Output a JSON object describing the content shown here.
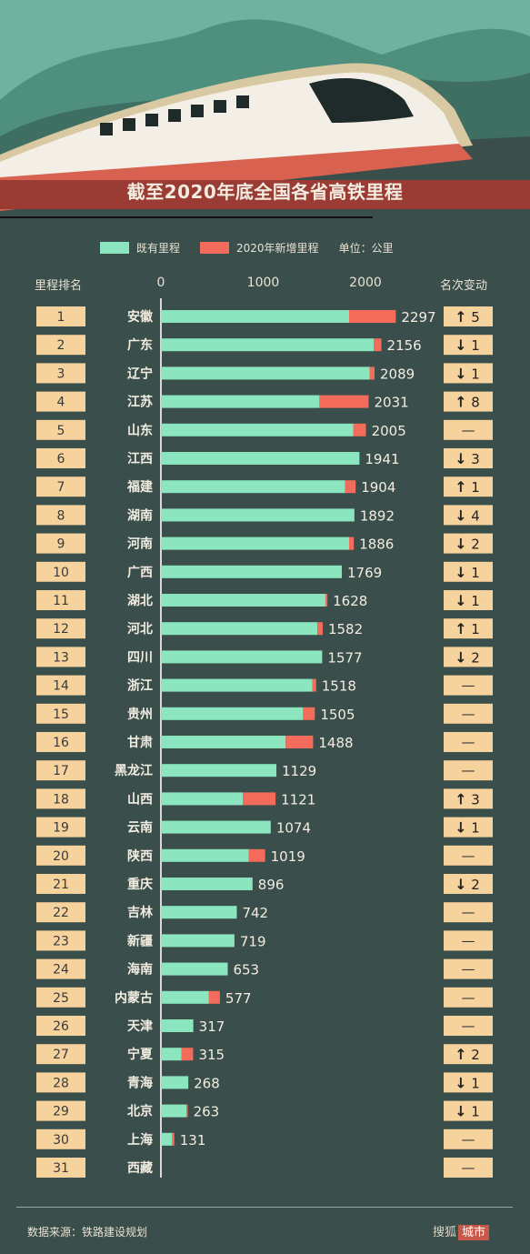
{
  "title": "截至2020年底全国各省高铁里程",
  "legend": {
    "existing": "既有里程",
    "added": "2020年新增里程",
    "unit": "单位：公里"
  },
  "headers": {
    "rank": "里程排名",
    "change": "名次变动"
  },
  "colors": {
    "existing": "#8be6bf",
    "added": "#f26b5b",
    "badge": "#f6d39c",
    "bg": "#3a4f4b"
  },
  "source": "数据来源：铁路建设规划",
  "brand": {
    "name": "搜狐",
    "tag": "城市"
  },
  "chart_data": {
    "type": "bar",
    "orientation": "horizontal",
    "stacked": true,
    "xlim": [
      0,
      2400
    ],
    "xticks": [
      0,
      1000,
      2000
    ],
    "series": [
      {
        "name": "既有里程",
        "values": [
          1840,
          2080,
          2040,
          1550,
          1880,
          1941,
          1800,
          1892,
          1840,
          1769,
          1610,
          1530,
          1577,
          1480,
          1390,
          1220,
          1129,
          800,
          1074,
          860,
          896,
          742,
          719,
          653,
          470,
          317,
          200,
          268,
          250,
          110,
          0
        ]
      },
      {
        "name": "2020年新增里程",
        "values": [
          457,
          76,
          49,
          481,
          125,
          0,
          104,
          0,
          46,
          0,
          18,
          52,
          0,
          38,
          115,
          268,
          0,
          321,
          0,
          159,
          0,
          0,
          0,
          0,
          107,
          0,
          115,
          0,
          13,
          21,
          0
        ]
      }
    ],
    "rows": [
      {
        "rank": "1",
        "province": "安徽",
        "total": "2297",
        "dir": "up",
        "change": "5"
      },
      {
        "rank": "2",
        "province": "广东",
        "total": "2156",
        "dir": "down",
        "change": "1"
      },
      {
        "rank": "3",
        "province": "辽宁",
        "total": "2089",
        "dir": "down",
        "change": "1"
      },
      {
        "rank": "4",
        "province": "江苏",
        "total": "2031",
        "dir": "up",
        "change": "8"
      },
      {
        "rank": "5",
        "province": "山东",
        "total": "2005",
        "dir": "none",
        "change": "—"
      },
      {
        "rank": "6",
        "province": "江西",
        "total": "1941",
        "dir": "down",
        "change": "3"
      },
      {
        "rank": "7",
        "province": "福建",
        "total": "1904",
        "dir": "up",
        "change": "1"
      },
      {
        "rank": "8",
        "province": "湖南",
        "total": "1892",
        "dir": "down",
        "change": "4"
      },
      {
        "rank": "9",
        "province": "河南",
        "total": "1886",
        "dir": "down",
        "change": "2"
      },
      {
        "rank": "10",
        "province": "广西",
        "total": "1769",
        "dir": "down",
        "change": "1"
      },
      {
        "rank": "11",
        "province": "湖北",
        "total": "1628",
        "dir": "down",
        "change": "1"
      },
      {
        "rank": "12",
        "province": "河北",
        "total": "1582",
        "dir": "up",
        "change": "1"
      },
      {
        "rank": "13",
        "province": "四川",
        "total": "1577",
        "dir": "down",
        "change": "2"
      },
      {
        "rank": "14",
        "province": "浙江",
        "total": "1518",
        "dir": "none",
        "change": "—"
      },
      {
        "rank": "15",
        "province": "贵州",
        "total": "1505",
        "dir": "none",
        "change": "—"
      },
      {
        "rank": "16",
        "province": "甘肃",
        "total": "1488",
        "dir": "none",
        "change": "—"
      },
      {
        "rank": "17",
        "province": "黑龙江",
        "total": "1129",
        "dir": "none",
        "change": "—"
      },
      {
        "rank": "18",
        "province": "山西",
        "total": "1121",
        "dir": "up",
        "change": "3"
      },
      {
        "rank": "19",
        "province": "云南",
        "total": "1074",
        "dir": "down",
        "change": "1"
      },
      {
        "rank": "20",
        "province": "陕西",
        "total": "1019",
        "dir": "none",
        "change": "—"
      },
      {
        "rank": "21",
        "province": "重庆",
        "total": "896",
        "dir": "down",
        "change": "2"
      },
      {
        "rank": "22",
        "province": "吉林",
        "total": "742",
        "dir": "none",
        "change": "—"
      },
      {
        "rank": "23",
        "province": "新疆",
        "total": "719",
        "dir": "none",
        "change": "—"
      },
      {
        "rank": "24",
        "province": "海南",
        "total": "653",
        "dir": "none",
        "change": "—"
      },
      {
        "rank": "25",
        "province": "内蒙古",
        "total": "577",
        "dir": "none",
        "change": "—"
      },
      {
        "rank": "26",
        "province": "天津",
        "total": "317",
        "dir": "none",
        "change": "—"
      },
      {
        "rank": "27",
        "province": "宁夏",
        "total": "315",
        "dir": "up",
        "change": "2"
      },
      {
        "rank": "28",
        "province": "青海",
        "total": "268",
        "dir": "down",
        "change": "1"
      },
      {
        "rank": "29",
        "province": "北京",
        "total": "263",
        "dir": "down",
        "change": "1"
      },
      {
        "rank": "30",
        "province": "上海",
        "total": "131",
        "dir": "none",
        "change": "—"
      },
      {
        "rank": "31",
        "province": "西藏",
        "total": "",
        "dir": "none",
        "change": "—"
      }
    ]
  }
}
